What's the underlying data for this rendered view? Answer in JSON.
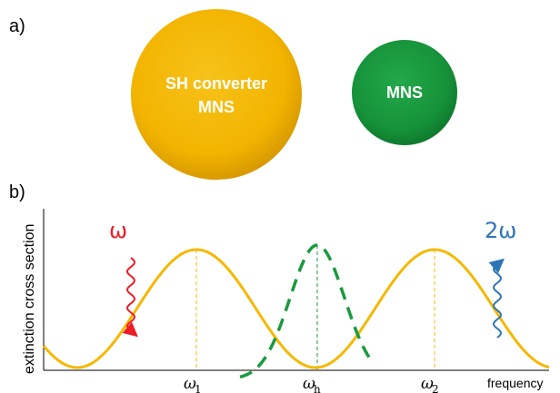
{
  "panel_a": {
    "label": "a)",
    "sphere_large": {
      "line1": "SH converter",
      "line2": "MNS",
      "color": "#f5b800"
    },
    "sphere_small": {
      "label": "MNS",
      "color": "#1a9a3e"
    }
  },
  "panel_b": {
    "label": "b)",
    "ylabel": "extinction cross section",
    "xlabel": "frequency",
    "ticks": {
      "w1": "ω",
      "w1_sub": "1",
      "wh": "ω",
      "wh_sub": "h",
      "w2": "ω",
      "w2_sub": "2"
    },
    "input_label": "ω",
    "output_label": "2ω",
    "colors": {
      "converter": "#f5b800",
      "mns": "#1a9a3e",
      "input": "#ee1c25",
      "output": "#2e75b6"
    }
  }
}
